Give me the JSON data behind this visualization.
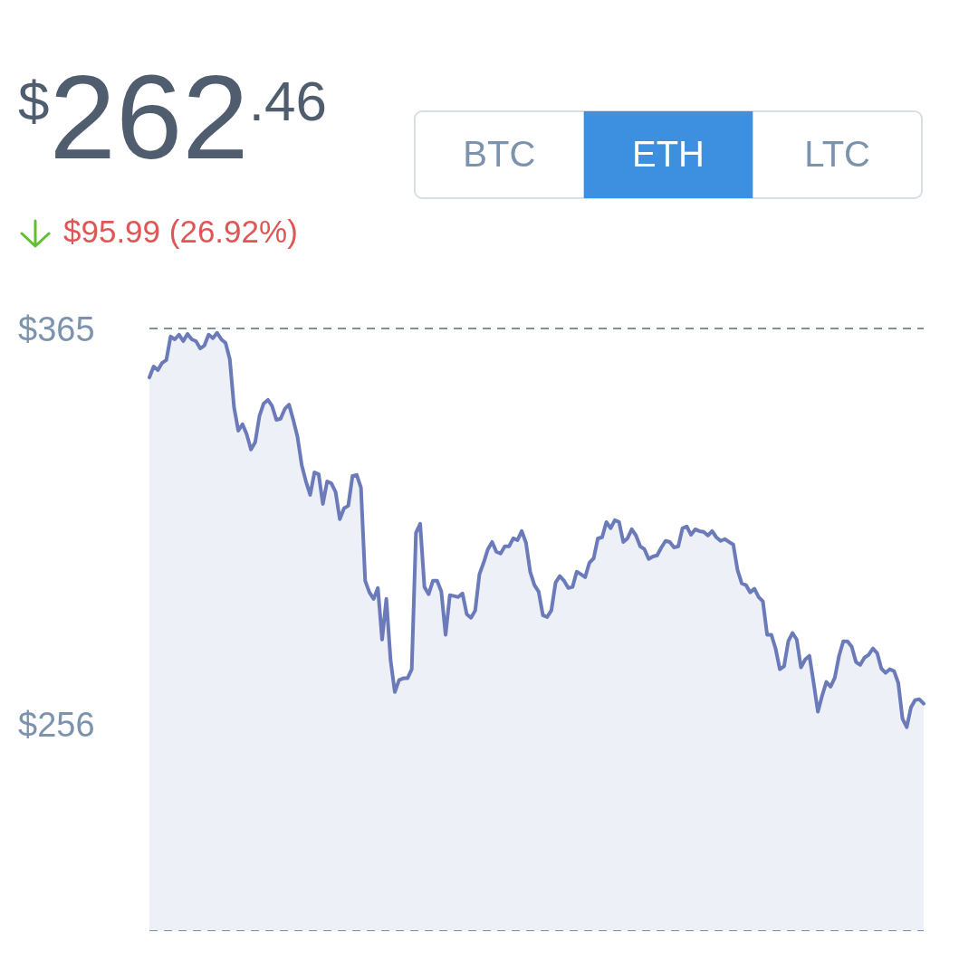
{
  "chart_data": {
    "type": "area",
    "title": "$262.46",
    "subtitle": "$95.99 (26.92%)",
    "annotations": [
      "BTC",
      "ETH",
      "LTC"
    ],
    "categories": [
      null,
      null,
      null,
      null,
      null,
      null,
      null,
      null,
      null,
      null,
      null,
      null,
      null,
      null,
      null,
      null,
      null,
      null,
      null,
      null,
      null,
      null,
      null,
      null,
      null,
      null,
      null,
      null,
      null,
      null,
      null,
      null,
      null,
      null,
      null,
      null,
      null,
      null,
      null,
      null,
      null,
      null,
      null,
      null,
      null,
      null,
      null,
      null,
      null,
      null,
      null,
      null,
      null,
      null,
      null,
      null,
      null,
      null,
      null,
      null,
      null,
      null,
      null,
      null,
      null,
      null,
      null,
      null,
      null,
      null,
      null,
      null,
      null,
      null,
      null,
      null,
      null,
      null,
      null,
      null,
      null,
      null,
      null,
      null,
      null,
      null,
      null,
      null,
      null,
      null,
      null,
      null,
      null,
      null,
      null,
      null,
      null,
      null,
      null,
      null,
      null,
      null,
      null,
      null,
      null,
      null,
      null,
      null,
      null,
      null,
      null,
      null,
      null,
      null,
      null,
      null,
      null,
      null,
      null,
      null,
      null,
      null,
      null,
      null,
      null,
      null,
      null,
      null,
      null,
      null,
      null,
      null,
      null,
      null,
      null,
      null,
      null,
      null,
      null,
      null,
      null,
      null,
      null,
      null,
      null,
      null,
      null,
      null,
      null,
      null,
      null,
      null,
      null,
      null,
      null,
      null,
      null,
      null,
      null,
      null,
      null,
      null,
      null,
      null,
      null,
      null,
      null,
      null,
      null,
      null,
      null,
      null,
      null,
      null,
      null,
      null,
      null,
      null,
      null,
      null,
      null,
      null,
      null,
      null
    ],
    "series": [
      {
        "color": "#6b7bb9",
        "values": [
          352.5,
          355.5,
          354.5,
          356.5,
          357.3,
          363.8,
          363,
          364.3,
          362.5,
          364.5,
          363,
          362.5,
          360.5,
          361.3,
          364.3,
          363.3,
          364.8,
          363,
          362,
          357.5,
          344.3,
          337.8,
          339.6,
          336.8,
          332.6,
          334.6,
          341.8,
          345.3,
          346.3,
          344.6,
          340.8,
          341.1,
          343.8,
          345,
          340.8,
          336.1,
          328.3,
          323.8,
          320.1,
          326.3,
          325.8,
          317.6,
          323.8,
          323.3,
          320.9,
          313.4,
          316.4,
          317.1,
          325.3,
          325.6,
          322.1,
          296.4,
          293.2,
          291.4,
          294.4,
          280.2,
          291.4,
          274.5,
          265.7,
          269,
          269.5,
          269.5,
          272,
          309.6,
          312.1,
          294.7,
          292.7,
          296.4,
          296.4,
          293.4,
          281.5,
          292.4,
          292.2,
          291.9,
          292.9,
          287.2,
          286.2,
          288.2,
          298.2,
          301.4,
          305.1,
          307.1,
          304.4,
          303.9,
          305.9,
          305.9,
          308.1,
          307.6,
          310.1,
          306.9,
          298.9,
          295.2,
          293.4,
          286.9,
          286.4,
          288.2,
          295.9,
          297.7,
          296.4,
          294.4,
          294.7,
          298.9,
          298.2,
          297.4,
          301.4,
          302.6,
          308.1,
          308.4,
          312.6,
          310.9,
          313.1,
          312.6,
          307.1,
          308.1,
          310.6,
          308.9,
          305.9,
          305.1,
          302.4,
          303.1,
          303.4,
          305.6,
          307.4,
          307.1,
          305.6,
          305.9,
          310.9,
          311.4,
          309.1,
          310.6,
          310.1,
          309.9,
          308.9,
          310.1,
          308.4,
          307.4,
          307.9,
          307.1,
          306.4,
          299.4,
          295.7,
          295.2,
          293.2,
          294.2,
          291.9,
          290.7,
          281.5,
          281.5,
          277.7,
          272,
          272.8,
          279.7,
          282,
          280.2,
          272.5,
          274.7,
          275.7,
          268.2,
          260.3,
          264.7,
          268.5,
          267.2,
          269.7,
          275.7,
          279.7,
          279.7,
          278.2,
          274,
          273.2,
          275.2,
          276,
          277.7,
          276.5,
          272.2,
          271,
          272,
          271.5,
          268.2,
          258.3,
          256,
          261.5,
          263.5,
          263.7,
          262.5
        ]
      }
    ],
    "ylim": [
      200,
      366
    ],
    "yticks": [
      {
        "value": 365,
        "label": "$365"
      },
      {
        "value": 256,
        "label": "$256"
      }
    ],
    "tick_labels": "y"
  }
}
